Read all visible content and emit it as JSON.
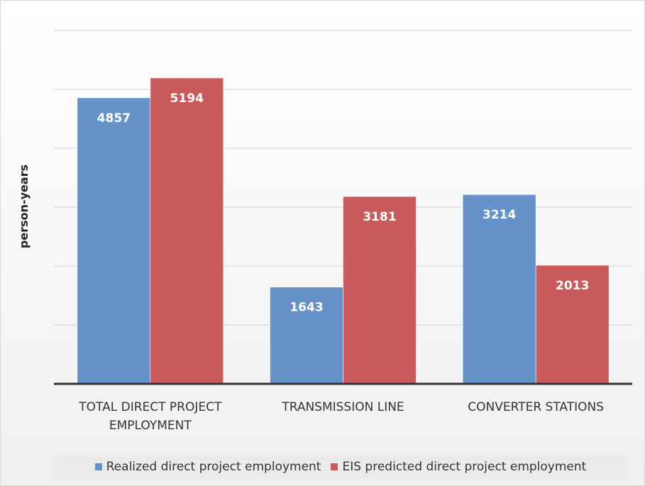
{
  "chart_data": {
    "type": "bar",
    "y_axis_label": "person-years",
    "categories": [
      "TOTAL DIRECT PROJECT EMPLOYMENT",
      "TRANSMISSION LINE",
      "CONVERTER STATIONS"
    ],
    "series": [
      {
        "name": "Realized direct project employment",
        "color": "#6592c9",
        "values": [
          4857,
          1643,
          3214
        ]
      },
      {
        "name": "EIS predicted direct project employment",
        "color": "#c95b5c",
        "values": [
          5194,
          3181,
          2013
        ]
      }
    ],
    "ylim": [
      0,
      6000
    ],
    "yticks": [
      1000,
      2000,
      3000,
      4000,
      5000,
      6000
    ],
    "grid": true
  }
}
